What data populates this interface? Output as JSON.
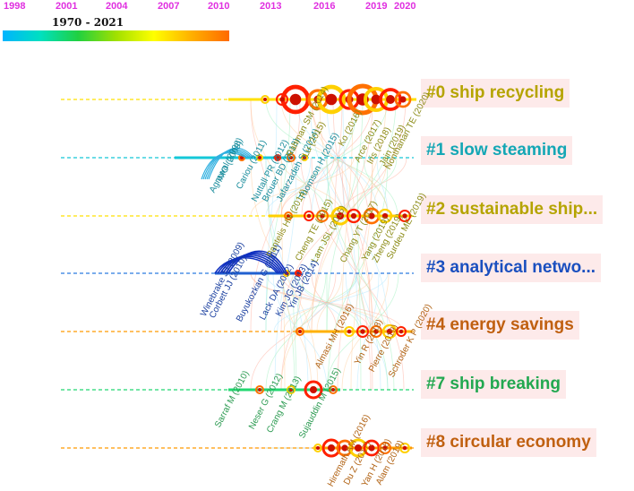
{
  "timeline": {
    "years": [
      "1998",
      "2001",
      "2004",
      "2007",
      "2010",
      "2013",
      "2016",
      "2019",
      "2020"
    ],
    "range_label": "1970 - 2021",
    "colorbar": [
      "#00b4ff",
      "#00e0c0",
      "#20d040",
      "#a0e000",
      "#ffff00",
      "#ffb000",
      "#ff6a00"
    ]
  },
  "clusters": [
    {
      "label": "#0 ship recycling",
      "color": "#b5a400",
      "line": "#ffe000"
    },
    {
      "label": "#1 slow steaming",
      "color": "#14a7b5",
      "line": "#14c8d8"
    },
    {
      "label": "#2 sustainable ship...",
      "color": "#b5a400",
      "line": "#ffe000"
    },
    {
      "label": "#3 analytical netwo...",
      "color": "#1a4fbf",
      "line": "#2a7ae0"
    },
    {
      "label": "#4 energy savings",
      "color": "#c06010",
      "line": "#ff9a00"
    },
    {
      "label": "#7 ship breaking",
      "color": "#22a850",
      "line": "#22d870"
    },
    {
      "label": "#8 circular economy",
      "color": "#c06010",
      "line": "#ff9a00"
    }
  ],
  "authors": [
    {
      "text": "Agrawal (2008)",
      "color": "#148a9a"
    },
    {
      "text": "IMO (2009)",
      "color": "#148a9a"
    },
    {
      "text": "Cariou (2011)",
      "color": "#148a9a"
    },
    {
      "text": "Nuttall PR (2012)",
      "color": "#148a9a"
    },
    {
      "text": "Brouer BD (2013)",
      "color": "#148a9a"
    },
    {
      "text": "Jafarzadeh S (2014)",
      "color": "#148a9a"
    },
    {
      "text": "Thomson H (2015)",
      "color": "#148a9a"
    },
    {
      "text": "Rahman SM (2014)",
      "color": "#8a8a14"
    },
    {
      "text": "Lu (2015)",
      "color": "#8a8a14"
    },
    {
      "text": "Ko (2016)",
      "color": "#8a8a14"
    },
    {
      "text": "Arce (2017)",
      "color": "#8a8a14"
    },
    {
      "text": "Iris (2018)",
      "color": "#8a8a14"
    },
    {
      "text": "Jain (2019)",
      "color": "#8a8a14"
    },
    {
      "text": "Nonthanan TE (2020)",
      "color": "#8a8a14"
    },
    {
      "text": "Pantelis HN (2014)",
      "color": "#8a8a14"
    },
    {
      "text": "Cheng TE (2015)",
      "color": "#8a8a14"
    },
    {
      "text": "Lam JSL (2015)",
      "color": "#8a8a14"
    },
    {
      "text": "Chang YT (2017)",
      "color": "#8a8a14"
    },
    {
      "text": "Yang (2019)",
      "color": "#8a8a14"
    },
    {
      "text": "Zheng (2019)",
      "color": "#8a8a14"
    },
    {
      "text": "Surdeu ME (2019)",
      "color": "#8a8a14"
    },
    {
      "text": "Winebrake JJ (2009)",
      "color": "#1a3f9f"
    },
    {
      "text": "Corbett JJ (2010)",
      "color": "#1a3f9f"
    },
    {
      "text": "Buyukozkan G (2011)",
      "color": "#1a3f9f"
    },
    {
      "text": "Lack DA (2012)",
      "color": "#1a3f9f"
    },
    {
      "text": "Kim JG (2013)",
      "color": "#1a3f9f"
    },
    {
      "text": "Yin JB (2014)",
      "color": "#1a3f9f"
    },
    {
      "text": "Almasi MH (2016)",
      "color": "#b06010"
    },
    {
      "text": "Yin R (2018)",
      "color": "#b06010"
    },
    {
      "text": "Pierre (2019)",
      "color": "#b06010"
    },
    {
      "text": "Schroder K P (2020)",
      "color": "#b06010"
    },
    {
      "text": "Sarraf M (2010)",
      "color": "#2a9a50"
    },
    {
      "text": "Neser G (2012)",
      "color": "#2a9a50"
    },
    {
      "text": "Crang M (2013)",
      "color": "#2a9a50"
    },
    {
      "text": "Sujauddin M (2015)",
      "color": "#2a9a50"
    },
    {
      "text": "Hiremath AM (2016)",
      "color": "#b06010"
    },
    {
      "text": "Du Z (2017)",
      "color": "#b06010"
    },
    {
      "text": "Yan H (2018)",
      "color": "#b06010"
    },
    {
      "text": "Alam (2019)",
      "color": "#b06010"
    }
  ]
}
